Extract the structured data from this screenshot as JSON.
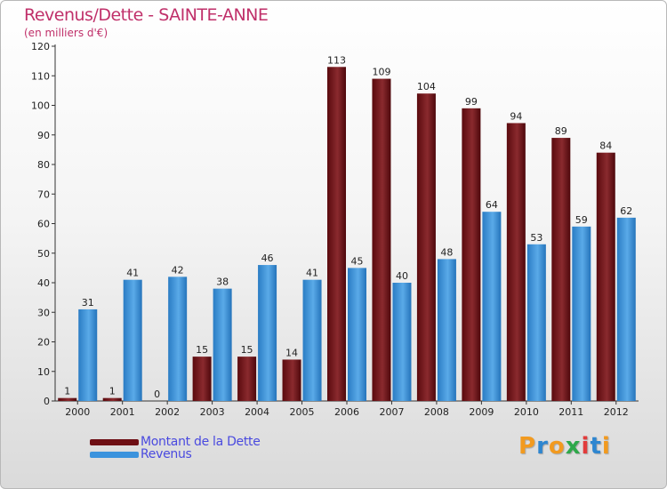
{
  "chart_data": {
    "type": "bar",
    "title": "Revenus/Dette - SAINTE-ANNE",
    "subtitle": "(en milliers d'€)",
    "categories": [
      "2000",
      "2001",
      "2002",
      "2003",
      "2004",
      "2005",
      "2006",
      "2007",
      "2008",
      "2009",
      "2010",
      "2011",
      "2012"
    ],
    "series": [
      {
        "name": "Montant de la Dette",
        "color": "#6e0f14",
        "values": [
          1,
          1,
          0,
          15,
          15,
          14,
          113,
          109,
          104,
          99,
          94,
          89,
          84
        ]
      },
      {
        "name": "Revenus",
        "color": "#2e86d0",
        "values": [
          31,
          41,
          42,
          38,
          46,
          41,
          45,
          40,
          48,
          64,
          53,
          59,
          62
        ]
      }
    ],
    "ylim": [
      0,
      120
    ],
    "yticks": [
      0,
      10,
      20,
      30,
      40,
      50,
      60,
      70,
      80,
      90,
      100,
      110,
      120
    ],
    "xlabel": "",
    "ylabel": "",
    "grid": false,
    "legend_position": "bottom-left"
  },
  "logo": {
    "text": "Proxiti",
    "letters": [
      {
        "ch": "P",
        "color": "#f29a1f"
      },
      {
        "ch": "r",
        "color": "#2e86d0"
      },
      {
        "ch": "o",
        "color": "#f29a1f"
      },
      {
        "ch": "x",
        "color": "#2ea84a"
      },
      {
        "ch": "i",
        "color": "#e23b3b"
      },
      {
        "ch": "t",
        "color": "#2e86d0"
      },
      {
        "ch": "i",
        "color": "#f29a1f"
      }
    ]
  }
}
